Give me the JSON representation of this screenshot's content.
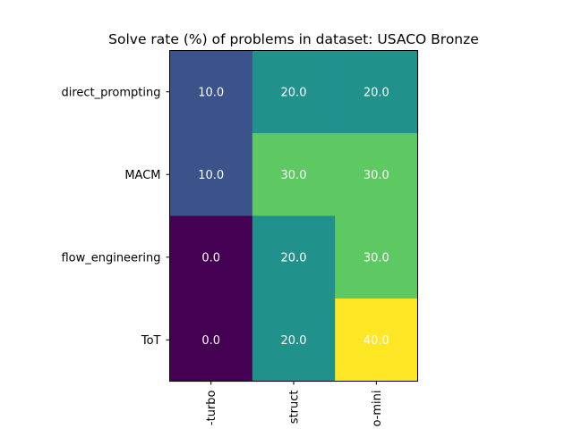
{
  "chart_data": {
    "type": "heatmap",
    "title": "Solve rate (%) of problems in dataset: USACO Bronze",
    "rows": [
      "direct_prompting",
      "MACM",
      "flow_engineering",
      "ToT"
    ],
    "columns": [
      "-turbo",
      "struct",
      "o-mini"
    ],
    "values": [
      [
        10.0,
        20.0,
        20.0
      ],
      [
        10.0,
        30.0,
        30.0
      ],
      [
        0.0,
        20.0,
        30.0
      ],
      [
        0.0,
        20.0,
        40.0
      ]
    ],
    "value_labels": [
      [
        "10.0",
        "20.0",
        "20.0"
      ],
      [
        "10.0",
        "30.0",
        "30.0"
      ],
      [
        "0.0",
        "20.0",
        "30.0"
      ],
      [
        "0.0",
        "20.0",
        "40.0"
      ]
    ],
    "value_range": [
      0,
      40
    ],
    "colormap": "viridis",
    "colorbar": false,
    "grid": false,
    "xlabel": "",
    "ylabel": ""
  }
}
